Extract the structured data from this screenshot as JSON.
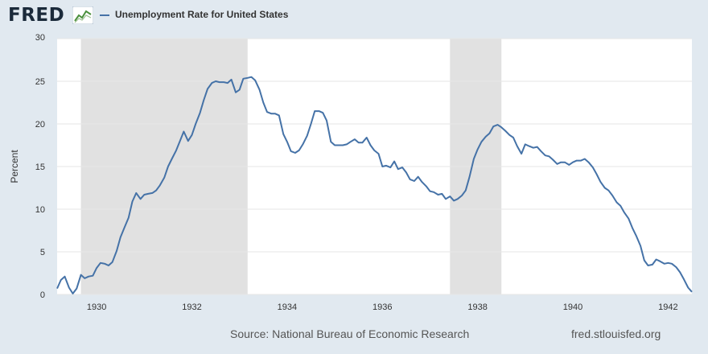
{
  "header": {
    "logo_text": "FRED",
    "logo_icon": "line-chart-icon",
    "legend_label": "Unemployment Rate for United States"
  },
  "footer": {
    "source": "Source: National Bureau of Economic Research",
    "url": "fred.stlouisfed.org"
  },
  "colors": {
    "line": "#4572a7",
    "recession": "#e1e1e1",
    "grid": "#e6e6e6",
    "background": "#e1e9f0",
    "plot_background": "#ffffff"
  },
  "chart_data": {
    "type": "line",
    "title": "",
    "xlabel": "",
    "ylabel": "Percent",
    "ylim": [
      0,
      30
    ],
    "xlim": [
      1929.17,
      1942.5
    ],
    "grid": true,
    "yticks": [
      0,
      5,
      10,
      15,
      20,
      25,
      30
    ],
    "xticks": [
      1930,
      1932,
      1934,
      1936,
      1938,
      1940,
      1942
    ],
    "recessions": [
      [
        1929.67,
        1933.17
      ],
      [
        1937.42,
        1938.5
      ]
    ],
    "series": [
      {
        "name": "Unemployment Rate for United States",
        "x": [
          1929.17,
          1929.25,
          1929.33,
          1929.42,
          1929.5,
          1929.58,
          1929.67,
          1929.75,
          1929.83,
          1929.92,
          1930.0,
          1930.08,
          1930.17,
          1930.25,
          1930.33,
          1930.42,
          1930.5,
          1930.58,
          1930.67,
          1930.75,
          1930.83,
          1930.92,
          1931.0,
          1931.08,
          1931.17,
          1931.25,
          1931.33,
          1931.42,
          1931.5,
          1931.58,
          1931.67,
          1931.75,
          1931.83,
          1931.92,
          1932.0,
          1932.08,
          1932.17,
          1932.25,
          1932.33,
          1932.42,
          1932.5,
          1932.58,
          1932.67,
          1932.75,
          1932.83,
          1932.92,
          1933.0,
          1933.08,
          1933.17,
          1933.25,
          1933.33,
          1933.42,
          1933.5,
          1933.58,
          1933.67,
          1933.75,
          1933.83,
          1933.92,
          1934.0,
          1934.08,
          1934.17,
          1934.25,
          1934.33,
          1934.42,
          1934.5,
          1934.58,
          1934.67,
          1934.75,
          1934.83,
          1934.92,
          1935.0,
          1935.08,
          1935.17,
          1935.25,
          1935.33,
          1935.42,
          1935.5,
          1935.58,
          1935.67,
          1935.75,
          1935.83,
          1935.92,
          1936.0,
          1936.08,
          1936.17,
          1936.25,
          1936.33,
          1936.42,
          1936.5,
          1936.58,
          1936.67,
          1936.75,
          1936.83,
          1936.92,
          1937.0,
          1937.08,
          1937.17,
          1937.25,
          1937.33,
          1937.42,
          1937.5,
          1937.58,
          1937.67,
          1937.75,
          1937.83,
          1937.92,
          1938.0,
          1938.08,
          1938.17,
          1938.25,
          1938.33,
          1938.42,
          1938.5,
          1938.58,
          1938.67,
          1938.75,
          1938.83,
          1938.92,
          1939.0,
          1939.08,
          1939.17,
          1939.25,
          1939.33,
          1939.42,
          1939.5,
          1939.58,
          1939.67,
          1939.75,
          1939.83,
          1939.92,
          1940.0,
          1940.08,
          1940.17,
          1940.25,
          1940.33,
          1940.42,
          1940.5,
          1940.58,
          1940.67,
          1940.75,
          1940.83,
          1940.92,
          1941.0,
          1941.08,
          1941.17,
          1941.25,
          1941.33,
          1941.42,
          1941.5,
          1941.58,
          1941.67,
          1941.75,
          1941.83,
          1941.92,
          1942.0,
          1942.08,
          1942.17,
          1942.25,
          1942.33,
          1942.42,
          1942.5
        ],
        "values": [
          0.7,
          1.7,
          2.1,
          0.8,
          0.1,
          0.7,
          2.3,
          1.9,
          2.1,
          2.2,
          3.1,
          3.7,
          3.6,
          3.4,
          3.8,
          5.1,
          6.7,
          7.8,
          9.0,
          10.9,
          11.9,
          11.2,
          11.7,
          11.8,
          11.9,
          12.2,
          12.8,
          13.7,
          15.0,
          15.9,
          16.9,
          18.0,
          19.1,
          18.0,
          18.7,
          20.0,
          21.3,
          22.8,
          24.1,
          24.8,
          25.0,
          24.9,
          24.9,
          24.8,
          25.2,
          23.7,
          24.0,
          25.3,
          25.4,
          25.5,
          25.1,
          24.0,
          22.5,
          21.4,
          21.2,
          21.2,
          21.0,
          18.8,
          17.9,
          16.8,
          16.6,
          16.9,
          17.6,
          18.6,
          20.0,
          21.5,
          21.5,
          21.3,
          20.4,
          17.9,
          17.5,
          17.5,
          17.5,
          17.6,
          17.9,
          18.2,
          17.8,
          17.8,
          18.4,
          17.5,
          16.9,
          16.5,
          15.0,
          15.1,
          14.9,
          15.6,
          14.7,
          14.9,
          14.3,
          13.5,
          13.3,
          13.8,
          13.2,
          12.7,
          12.1,
          12.0,
          11.7,
          11.8,
          11.2,
          11.5,
          11.0,
          11.2,
          11.6,
          12.2,
          13.8,
          15.9,
          17.0,
          17.9,
          18.5,
          18.9,
          19.7,
          19.9,
          19.6,
          19.2,
          18.7,
          18.4,
          17.4,
          16.5,
          17.6,
          17.4,
          17.2,
          17.3,
          16.8,
          16.3,
          16.2,
          15.8,
          15.3,
          15.5,
          15.5,
          15.2,
          15.5,
          15.7,
          15.7,
          15.9,
          15.5,
          14.9,
          14.1,
          13.2,
          12.5,
          12.2,
          11.6,
          10.8,
          10.4,
          9.6,
          8.9,
          7.8,
          6.9,
          5.7,
          4.0,
          3.4,
          3.5,
          4.1,
          3.9,
          3.6,
          3.7,
          3.6,
          3.2,
          2.6,
          1.8,
          0.8,
          0.3
        ]
      }
    ]
  }
}
